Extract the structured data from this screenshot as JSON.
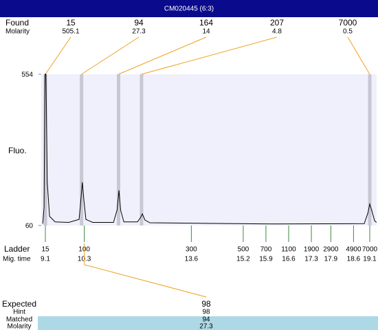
{
  "title": "CM020445 (6:3)",
  "chart_data": {
    "type": "line",
    "found_label": "Found",
    "molarity_label": "Molarity",
    "found": [
      15,
      94,
      164,
      207,
      7000
    ],
    "found_molarity": [
      505.1,
      27.3,
      14,
      4.8,
      0.5
    ],
    "y_label": "Fluo.",
    "ylim": [
      60,
      554
    ],
    "yticks": [
      60,
      554
    ],
    "ladder_label": "Ladder",
    "mig_time_label": "Mig. time",
    "ladder": [
      15,
      100,
      300,
      500,
      700,
      1100,
      1900,
      2900,
      4900,
      7000
    ],
    "mig_times": [
      9.1,
      10.3,
      13.6,
      15.2,
      15.9,
      16.6,
      17.3,
      17.9,
      18.6,
      19.1
    ],
    "x": [
      9.02,
      9.06,
      9.09,
      9.12,
      9.16,
      9.23,
      9.4,
      9.82,
      10.14,
      10.2,
      10.24,
      10.29,
      10.35,
      10.56,
      11.2,
      11.31,
      11.37,
      11.42,
      11.52,
      11.94,
      12.03,
      12.09,
      12.17,
      12.32,
      14.06,
      16.17,
      18.93,
      19.04,
      19.1,
      19.16,
      19.25,
      19.31
    ],
    "values": [
      66,
      120,
      554,
      554,
      200,
      90,
      72,
      70,
      80,
      150,
      201,
      140,
      80,
      70,
      70,
      110,
      175,
      110,
      72,
      72,
      85,
      98,
      78,
      69,
      67,
      65,
      66,
      100,
      130,
      110,
      75,
      70
    ]
  },
  "details": {
    "rows": [
      {
        "label": "Expected",
        "value": 98
      },
      {
        "label": "Hint",
        "value": 98
      },
      {
        "label": "Matched",
        "value": 94
      },
      {
        "label": "Molarity",
        "value": 27.3
      }
    ]
  }
}
